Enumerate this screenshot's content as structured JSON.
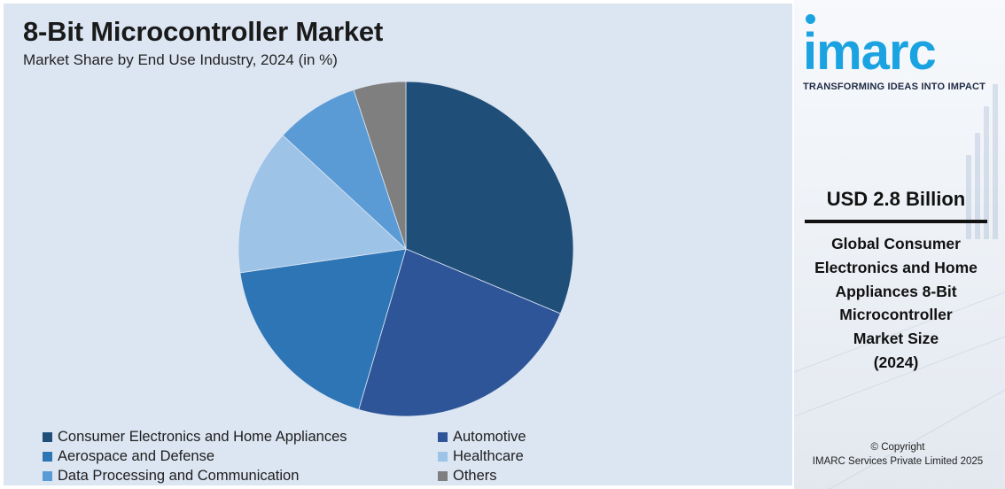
{
  "chart_data": {
    "type": "pie",
    "title": "8-Bit Microcontroller Market",
    "subtitle": "Market Share by End Use Industry, 2024 (in %)",
    "categories": [
      "Consumer Electronics and Home Appliances",
      "Automotive",
      "Aerospace and Defense",
      "Healthcare",
      "Data Processing and Communication",
      "Others"
    ],
    "values": [
      31,
      23,
      18,
      14,
      8,
      5
    ],
    "colors": [
      "#1f4e79",
      "#2e5597",
      "#2e75b6",
      "#9dc3e6",
      "#5b9bd5",
      "#7f7f7f"
    ],
    "start_angle_deg": 0,
    "direction": "clockwise",
    "legend_position": "bottom"
  },
  "branding": {
    "logo_text": "imarc",
    "tagline": "TRANSFORMING IDEAS INTO IMPACT",
    "accent_color": "#1aa3e0"
  },
  "highlight": {
    "value": "USD 2.8 Billion",
    "description_lines": [
      "Global Consumer",
      "Electronics and Home",
      "Appliances 8-Bit",
      "Microcontroller",
      "Market Size",
      "(2024)"
    ]
  },
  "footer": {
    "copyright_line1": "© Copyright",
    "copyright_line2": "IMARC Services Private Limited 2025"
  }
}
